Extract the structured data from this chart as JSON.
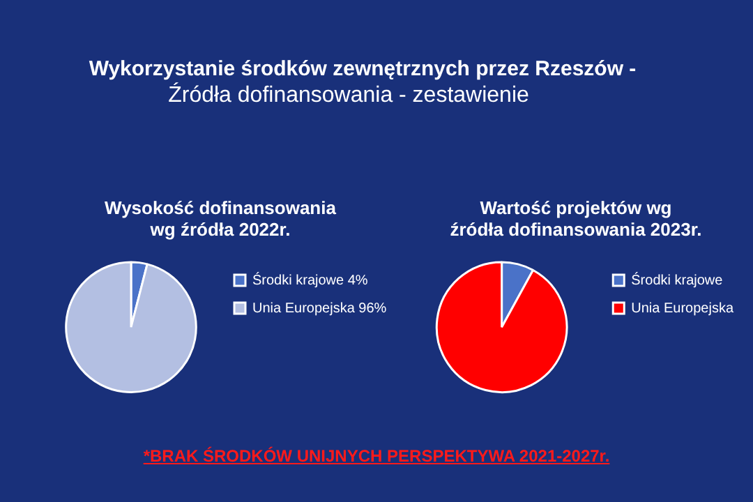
{
  "chart_data": [
    {
      "type": "pie",
      "title": "Wysokość dofinansowania\nwg źródła 2022r.",
      "categories": [
        "Środki krajowe",
        "Unia Europejska"
      ],
      "values": [
        4,
        96
      ],
      "value_labels": [
        "4%",
        "96%"
      ],
      "colors": [
        "#4a72c8",
        "#b3bfe2"
      ],
      "legend": "right",
      "annotations": [
        "Wykorzystanie środków zewnętrznych przez Rzeszów -",
        "Źródła dofinansowania - zestawienie"
      ]
    },
    {
      "type": "pie",
      "title": "Wartość projektów wg\nźródła dofinansowania 2023r.",
      "categories": [
        "Środki krajowe",
        "Unia Europejska"
      ],
      "values": [
        8,
        92
      ],
      "colors": [
        "#4a72c8",
        "#ff0000"
      ],
      "legend": "right",
      "annotations": [
        "*BRAK ŚRODKÓW UNIJNYCH PERSPEKTYWA 2021-2027r."
      ]
    }
  ]
}
